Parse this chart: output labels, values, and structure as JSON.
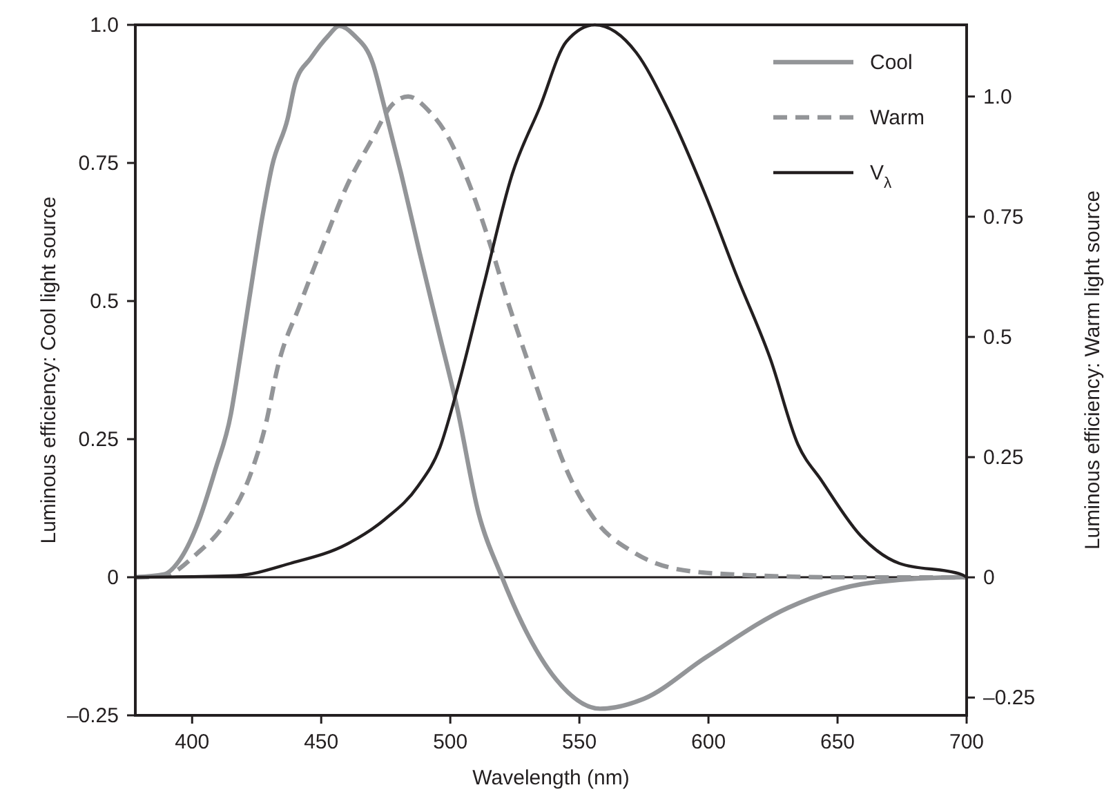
{
  "chart_data": {
    "type": "line",
    "xlabel": "Wavelength (nm)",
    "ylabel": "Luminous efficiency: Cool light source",
    "y2label": "Luminous efficiency: Warm light source",
    "xlim": [
      378,
      700
    ],
    "xticks": [
      400,
      450,
      500,
      550,
      600,
      650,
      700
    ],
    "ylim": [
      -0.25,
      1.0
    ],
    "yticks": [
      {
        "value": -0.25,
        "label": "–0.25"
      },
      0,
      0.25,
      0.5,
      0.75,
      {
        "value": 1,
        "label": "1.0"
      }
    ],
    "y2lim": [
      -0.287,
      1.149
    ],
    "y2ticks": [
      {
        "value": -0.25,
        "label": "–0.25"
      },
      0,
      0.25,
      0.5,
      0.75,
      {
        "value": 1,
        "label": "1.0"
      }
    ],
    "legend": "top right",
    "grid": false,
    "ref_lines": [
      {
        "axis": "y",
        "value": 0,
        "color": "#231f20"
      }
    ],
    "series": [
      {
        "name": "Cool",
        "color": "#939598",
        "line_style": "solid",
        "x": [
          378,
          389,
          395,
          402,
          409,
          415,
          417,
          422,
          427.5,
          431,
          437,
          440,
          446,
          452.7,
          457,
          463,
          470,
          474,
          481,
          488,
          495.5,
          502.5,
          511,
          519.6,
          528,
          541,
          558,
          575,
          599,
          631,
          663,
          698,
          700
        ],
        "values": [
          0,
          0.005,
          0.03,
          0.095,
          0.195,
          0.295,
          0.35,
          0.5,
          0.66,
          0.745,
          0.83,
          0.895,
          0.94,
          0.98,
          0.998,
          0.98,
          0.93,
          0.86,
          0.73,
          0.59,
          0.445,
          0.31,
          0.115,
          0.005,
          -0.085,
          -0.185,
          -0.238,
          -0.22,
          -0.145,
          -0.055,
          -0.01,
          0,
          0
        ]
      },
      {
        "name": "Warm",
        "color": "#939598",
        "line_style": "dashed",
        "axis": "y2",
        "x": [
          378,
          389,
          402,
          412.5,
          423,
          428.6,
          433,
          442,
          450.6,
          459.6,
          470,
          477,
          483.7,
          491.7,
          498.7,
          506,
          515,
          522,
          531,
          537,
          545,
          556,
          571,
          588,
          609.6,
          652,
          700
        ],
        "values": [
          0,
          0.003,
          0.05,
          0.11,
          0.22,
          0.32,
          0.434,
          0.57,
          0.69,
          0.81,
          0.914,
          0.98,
          1.0,
          0.97,
          0.92,
          0.836,
          0.7,
          0.578,
          0.434,
          0.34,
          0.224,
          0.12,
          0.052,
          0.017,
          0.006,
          0,
          0
        ]
      },
      {
        "name": "V$_{λ}$",
        "color": "#231f20",
        "line_style": "solid",
        "x": [
          378,
          417,
          438,
          460,
          474.7,
          487.5,
          496,
          502.5,
          513,
          524,
          534.6,
          545,
          556,
          572,
          584,
          599,
          611,
          624,
          634.7,
          643.8,
          659,
          674,
          698,
          700
        ],
        "values": [
          0,
          0.003,
          0.025,
          0.06,
          0.105,
          0.165,
          0.235,
          0.337,
          0.53,
          0.73,
          0.85,
          0.97,
          1.0,
          0.95,
          0.85,
          0.69,
          0.545,
          0.395,
          0.24,
          0.175,
          0.075,
          0.025,
          0.005,
          0
        ]
      }
    ]
  }
}
